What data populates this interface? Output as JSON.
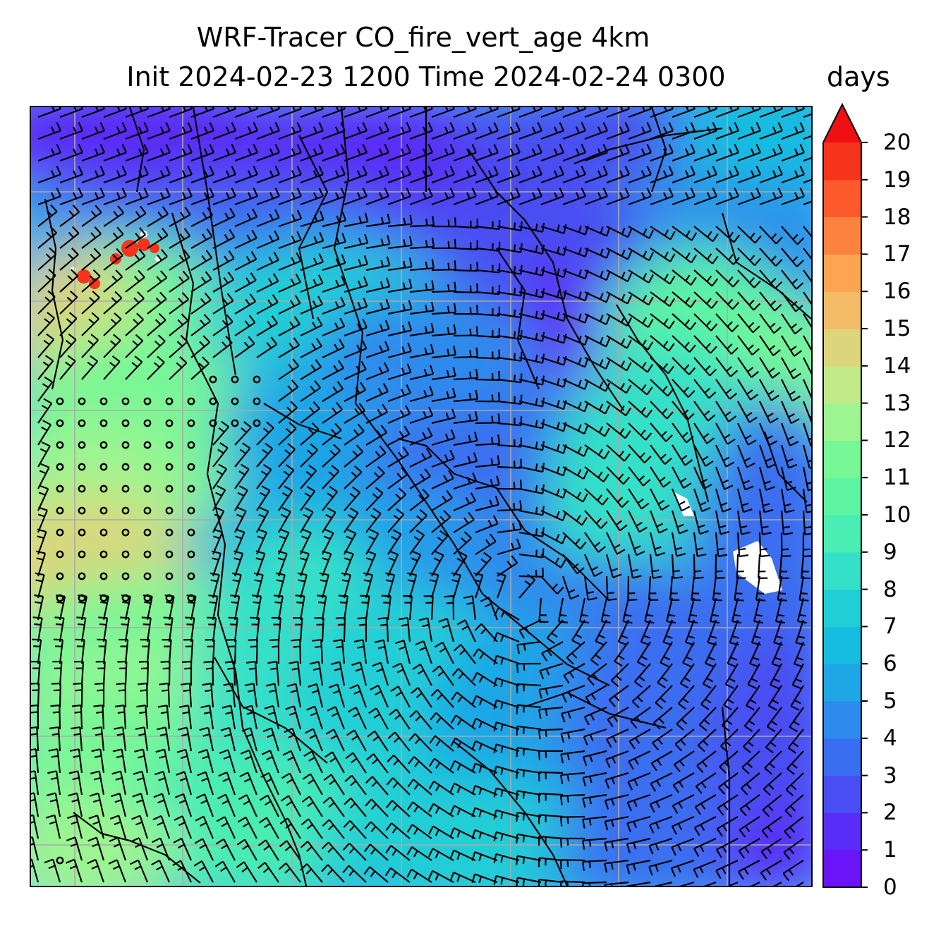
{
  "title": {
    "line1": "WRF-Tracer CO_fire_vert_age 4km",
    "line2": "Init 2024-02-23 1200 Time 2024-02-24 0300"
  },
  "colorbar": {
    "units": "days",
    "min": 0,
    "max": 20,
    "extend": "max",
    "ticks": [
      "0",
      "1",
      "2",
      "3",
      "4",
      "5",
      "6",
      "7",
      "8",
      "9",
      "10",
      "11",
      "12",
      "13",
      "14",
      "15",
      "16",
      "17",
      "18",
      "19",
      "20"
    ],
    "colors": [
      "#6a14f8",
      "#5a2cf8",
      "#4a4ef2",
      "#3a6ef0",
      "#2d8bed",
      "#1ea6e6",
      "#16bde0",
      "#20cfd6",
      "#34e0c8",
      "#4aedb4",
      "#5ef5a2",
      "#78f796",
      "#9cf590",
      "#c2ea88",
      "#dcd57c",
      "#f3bb66",
      "#fca452",
      "#fc8240",
      "#fc5a2c",
      "#f6341c",
      "#ee1012"
    ],
    "extend_color": "#ee1012"
  },
  "map": {
    "field": "CO_fire_vert_age",
    "gridlines": true,
    "overlays": [
      "wind-barbs",
      "coastlines",
      "state-borders",
      "calm-circles"
    ]
  }
}
